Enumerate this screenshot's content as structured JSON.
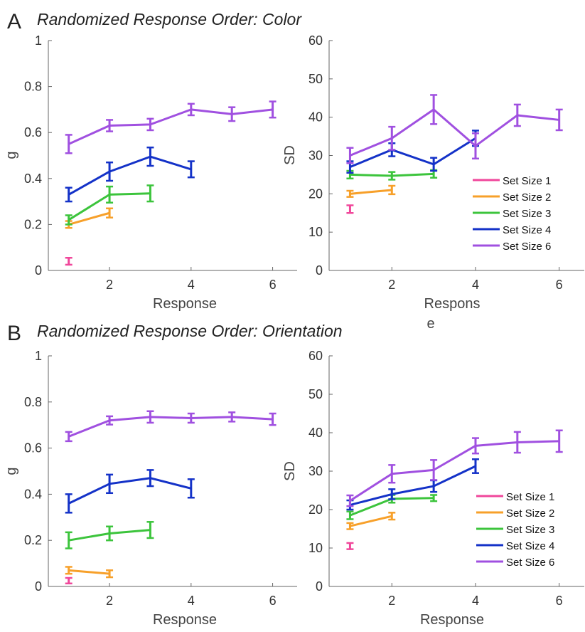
{
  "panels": [
    {
      "letter": "A",
      "title": "Randomized Response Order: Color"
    },
    {
      "letter": "B",
      "title": "Randomized Response Order: Orientation"
    }
  ],
  "colors": {
    "Set Size 1": "#f0479b",
    "Set Size 2": "#f7a02a",
    "Set Size 3": "#3cc43c",
    "Set Size 4": "#1432c8",
    "Set Size 6": "#a050e0"
  },
  "chart_data": [
    {
      "type": "line",
      "panel": "A",
      "xlabel": "Response",
      "ylabel": "g",
      "xlim": [
        0.5,
        6.6
      ],
      "ylim": [
        0,
        1
      ],
      "xticks": [
        "2",
        "4",
        "6"
      ],
      "yticks": [
        "0",
        "0.2",
        "0.4",
        "0.6",
        "0.8",
        "1"
      ],
      "legend": "none",
      "series": [
        {
          "name": "Set Size 1",
          "x": [
            1
          ],
          "values": [
            0.04
          ],
          "err": [
            0.015
          ]
        },
        {
          "name": "Set Size 2",
          "x": [
            1,
            2
          ],
          "values": [
            0.2,
            0.25
          ],
          "err": [
            0.015,
            0.02
          ]
        },
        {
          "name": "Set Size 3",
          "x": [
            1,
            2,
            3
          ],
          "values": [
            0.22,
            0.33,
            0.335
          ],
          "err": [
            0.02,
            0.035,
            0.035
          ]
        },
        {
          "name": "Set Size 4",
          "x": [
            1,
            2,
            3,
            4
          ],
          "values": [
            0.33,
            0.43,
            0.495,
            0.44
          ],
          "err": [
            0.03,
            0.04,
            0.04,
            0.035
          ]
        },
        {
          "name": "Set Size 6",
          "x": [
            1,
            2,
            3,
            4,
            5,
            6
          ],
          "values": [
            0.55,
            0.63,
            0.635,
            0.7,
            0.68,
            0.7
          ],
          "err": [
            0.04,
            0.025,
            0.025,
            0.025,
            0.03,
            0.035
          ]
        }
      ]
    },
    {
      "type": "line",
      "panel": "A",
      "xlabel": "Respons\ne",
      "ylabel": "SD",
      "xlim": [
        0.5,
        6.6
      ],
      "ylim": [
        0,
        60
      ],
      "xticks": [
        "2",
        "4",
        "6"
      ],
      "yticks": [
        "0",
        "10",
        "20",
        "30",
        "40",
        "50",
        "60"
      ],
      "legend": "bottom-right",
      "series": [
        {
          "name": "Set Size 1",
          "x": [
            1
          ],
          "values": [
            16
          ],
          "err": [
            1
          ]
        },
        {
          "name": "Set Size 2",
          "x": [
            1,
            2
          ],
          "values": [
            20,
            21
          ],
          "err": [
            0.8,
            1.1
          ]
        },
        {
          "name": "Set Size 3",
          "x": [
            1,
            2,
            3
          ],
          "values": [
            25,
            24.7,
            25.2
          ],
          "err": [
            1,
            1,
            1
          ]
        },
        {
          "name": "Set Size 4",
          "x": [
            1,
            2,
            3,
            4
          ],
          "values": [
            27,
            31.5,
            27.7,
            34.5
          ],
          "err": [
            1.5,
            1.7,
            1.7,
            2
          ]
        },
        {
          "name": "Set Size 6",
          "x": [
            1,
            2,
            3,
            4,
            5,
            6
          ],
          "values": [
            30,
            34.5,
            42,
            32.5,
            40.5,
            39.3
          ],
          "err": [
            2,
            3,
            3.8,
            3.3,
            2.8,
            2.7
          ]
        }
      ]
    },
    {
      "type": "line",
      "panel": "B",
      "xlabel": "Response",
      "ylabel": "g",
      "xlim": [
        0.5,
        6.6
      ],
      "ylim": [
        0,
        1
      ],
      "xticks": [
        "2",
        "4",
        "6"
      ],
      "yticks": [
        "0",
        "0.2",
        "0.4",
        "0.6",
        "0.8",
        "1"
      ],
      "legend": "none",
      "series": [
        {
          "name": "Set Size 1",
          "x": [
            1
          ],
          "values": [
            0.025
          ],
          "err": [
            0.012
          ]
        },
        {
          "name": "Set Size 2",
          "x": [
            1,
            2
          ],
          "values": [
            0.07,
            0.055
          ],
          "err": [
            0.015,
            0.015
          ]
        },
        {
          "name": "Set Size 3",
          "x": [
            1,
            2,
            3
          ],
          "values": [
            0.2,
            0.23,
            0.245
          ],
          "err": [
            0.035,
            0.03,
            0.035
          ]
        },
        {
          "name": "Set Size 4",
          "x": [
            1,
            2,
            3,
            4
          ],
          "values": [
            0.36,
            0.445,
            0.47,
            0.425
          ],
          "err": [
            0.04,
            0.04,
            0.035,
            0.04
          ]
        },
        {
          "name": "Set Size 6",
          "x": [
            1,
            2,
            3,
            4,
            5,
            6
          ],
          "values": [
            0.65,
            0.72,
            0.735,
            0.73,
            0.735,
            0.725
          ],
          "err": [
            0.02,
            0.018,
            0.025,
            0.02,
            0.02,
            0.025
          ]
        }
      ]
    },
    {
      "type": "line",
      "panel": "B",
      "xlabel": "Response",
      "ylabel": "SD",
      "xlim": [
        0.5,
        6.6
      ],
      "ylim": [
        0,
        60
      ],
      "xticks": [
        "2",
        "4",
        "6"
      ],
      "yticks": [
        "0",
        "10",
        "20",
        "30",
        "40",
        "50",
        "60"
      ],
      "legend": "bottom-right",
      "series": [
        {
          "name": "Set Size 1",
          "x": [
            1
          ],
          "values": [
            10.5
          ],
          "err": [
            0.8
          ]
        },
        {
          "name": "Set Size 2",
          "x": [
            1,
            2
          ],
          "values": [
            15.7,
            18.3
          ],
          "err": [
            0.8,
            0.9
          ]
        },
        {
          "name": "Set Size 3",
          "x": [
            1,
            2,
            3
          ],
          "values": [
            18.5,
            22.8,
            23
          ],
          "err": [
            1,
            1,
            0.8
          ]
        },
        {
          "name": "Set Size 4",
          "x": [
            1,
            2,
            3,
            4
          ],
          "values": [
            21.2,
            24,
            26.1,
            31.3
          ],
          "err": [
            1.2,
            1.3,
            1.5,
            1.8
          ]
        },
        {
          "name": "Set Size 6",
          "x": [
            1,
            2,
            3,
            4,
            5,
            6
          ],
          "values": [
            22.3,
            29.3,
            30.3,
            36.6,
            37.5,
            37.8
          ],
          "err": [
            1.4,
            2.3,
            2.6,
            2,
            2.7,
            2.8
          ]
        }
      ]
    }
  ]
}
